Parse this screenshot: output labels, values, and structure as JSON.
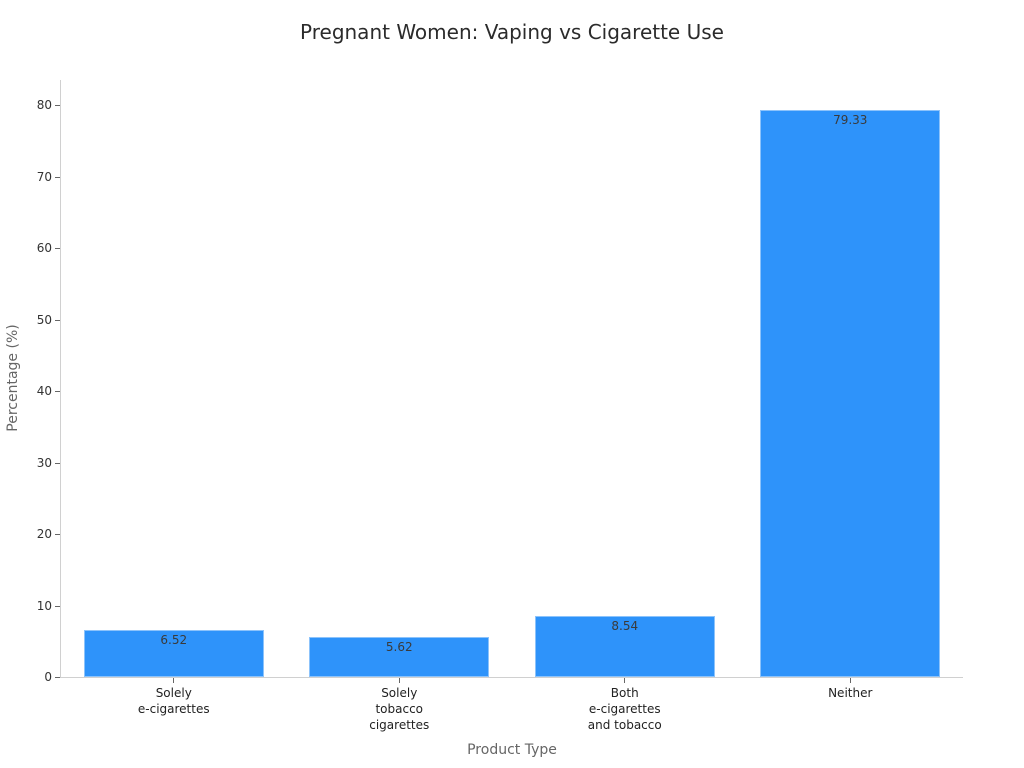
{
  "chart_data": {
    "type": "bar",
    "title": "Pregnant Women: Vaping vs Cigarette Use",
    "xlabel": "Product Type",
    "ylabel": "Percentage (%)",
    "categories": [
      "Solely e-cigarettes",
      "Solely tobacco cigarettes",
      "Both e-cigarettes and tobacco",
      "Neither"
    ],
    "category_lines": [
      [
        "Solely",
        "e-cigarettes"
      ],
      [
        "Solely",
        "tobacco",
        "cigarettes"
      ],
      [
        "Both",
        "e-cigarettes",
        "and tobacco"
      ],
      [
        "Neither"
      ]
    ],
    "values": [
      6.52,
      5.62,
      8.54,
      79.33
    ],
    "value_labels": [
      "6.52",
      "5.62",
      "8.54",
      "79.33"
    ],
    "ylim": [
      0,
      83.5
    ],
    "yticks": [
      0,
      10,
      20,
      30,
      40,
      50,
      60,
      70,
      80
    ],
    "grid": false,
    "legend": null,
    "bar_color": "#2e93fa"
  }
}
